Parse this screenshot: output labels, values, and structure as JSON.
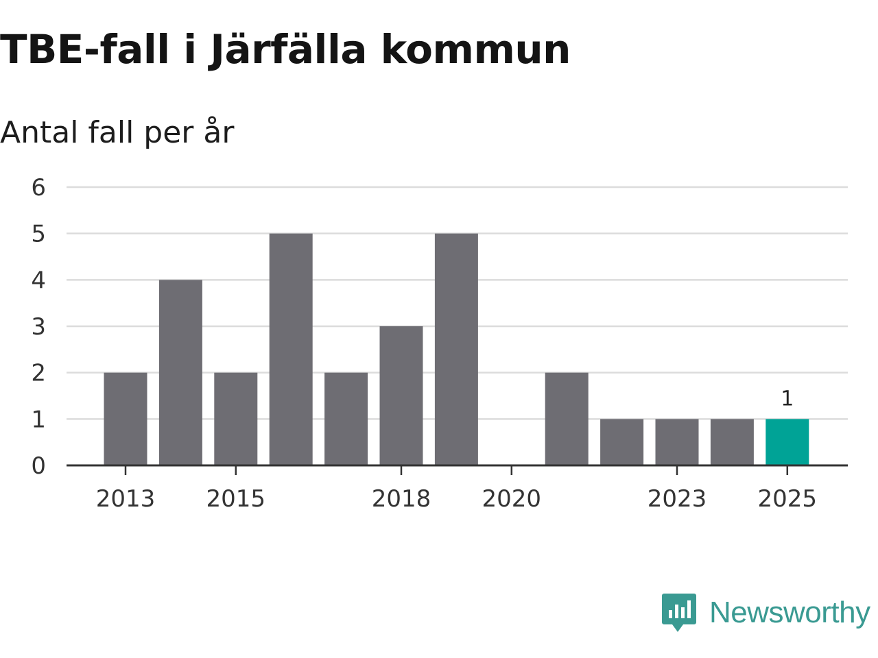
{
  "title": "TBE-fall i Järfälla kommun",
  "subtitle": "Antal fall per år",
  "brand": {
    "name": "Newsworthy",
    "color": "#3a9a92"
  },
  "colors": {
    "bar_default": "#6e6d73",
    "bar_highlight": "#00a396",
    "gridline": "#dcdcdc",
    "axis": "#333333"
  },
  "chart_data": {
    "type": "bar",
    "title": "TBE-fall i Järfälla kommun",
    "subtitle": "Antal fall per år",
    "xlabel": "",
    "ylabel": "",
    "categories": [
      "2013",
      "2014",
      "2015",
      "2016",
      "2017",
      "2018",
      "2019",
      "2020",
      "2021",
      "2022",
      "2023",
      "2024",
      "2025"
    ],
    "values": [
      2,
      4,
      2,
      5,
      2,
      3,
      5,
      0,
      2,
      1,
      1,
      1,
      1
    ],
    "x_tick_labels": [
      "2013",
      "2015",
      "2018",
      "2020",
      "2023",
      "2025"
    ],
    "y_ticks": [
      0,
      1,
      2,
      3,
      4,
      5,
      6
    ],
    "ylim": [
      0,
      6
    ],
    "highlight_category": "2025",
    "data_labels": [
      {
        "category": "2025",
        "text": "1"
      }
    ],
    "grid": true,
    "legend": "none"
  }
}
